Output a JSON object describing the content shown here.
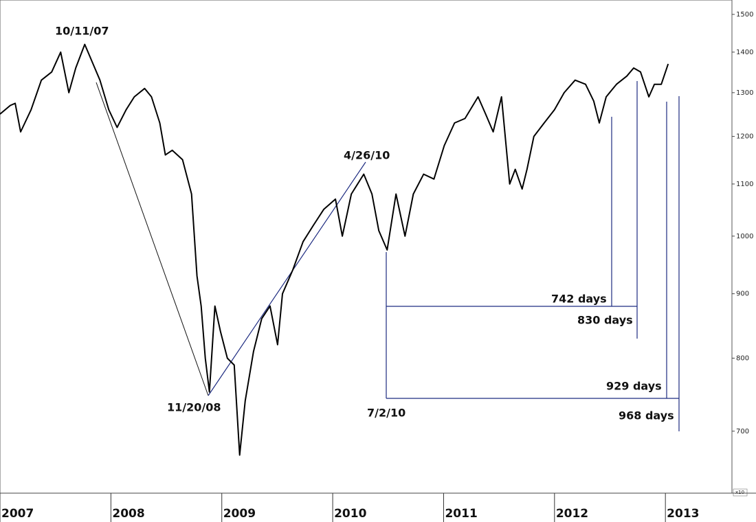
{
  "chart_data": {
    "type": "line",
    "log_y": true,
    "color": "#000000",
    "x": [
      2007.0,
      2007.093,
      2007.137,
      2007.186,
      2007.28,
      2007.373,
      2007.466,
      2007.547,
      2007.621,
      2007.683,
      2007.764,
      2007.839,
      2007.901,
      2007.981,
      2008.056,
      2008.137,
      2008.211,
      2008.304,
      2008.366,
      2008.441,
      2008.491,
      2008.553,
      2008.646,
      2008.727,
      2008.776,
      2008.814,
      2008.851,
      2008.888,
      2008.938,
      2008.988,
      2009.05,
      2009.112,
      2009.161,
      2009.211,
      2009.286,
      2009.36,
      2009.435,
      2009.503,
      2009.547,
      2009.64,
      2009.733,
      2009.826,
      2009.919,
      2010.025,
      2010.087,
      2010.168,
      2010.28,
      2010.354,
      2010.416,
      2010.491,
      2010.571,
      2010.652,
      2010.727,
      2010.82,
      2010.913,
      2011.006,
      2011.099,
      2011.193,
      2011.311,
      2011.379,
      2011.447,
      2011.522,
      2011.596,
      2011.646,
      2011.708,
      2011.752,
      2011.814,
      2011.907,
      2012.0,
      2012.087,
      2012.186,
      2012.28,
      2012.354,
      2012.404,
      2012.466,
      2012.559,
      2012.652,
      2012.714,
      2012.776,
      2012.851,
      2012.901,
      2012.963,
      2013.025
    ],
    "values": [
      1250,
      1270,
      1275,
      1210,
      1260,
      1330,
      1350,
      1400,
      1300,
      1360,
      1420,
      1370,
      1330,
      1260,
      1220,
      1260,
      1290,
      1310,
      1290,
      1230,
      1160,
      1170,
      1150,
      1080,
      930,
      880,
      800,
      752,
      880,
      840,
      800,
      790,
      670,
      740,
      810,
      860,
      880,
      820,
      900,
      940,
      990,
      1020,
      1050,
      1070,
      1000,
      1080,
      1120,
      1080,
      1010,
      975,
      1080,
      1000,
      1080,
      1120,
      1110,
      1180,
      1230,
      1240,
      1290,
      1250,
      1210,
      1290,
      1100,
      1130,
      1090,
      1130,
      1200,
      1230,
      1260,
      1300,
      1330,
      1320,
      1280,
      1230,
      1290,
      1320,
      1340,
      1360,
      1350,
      1290,
      1320,
      1320,
      1370
    ],
    "xlim": [
      2007,
      2013.6
    ],
    "xticks": [
      2007,
      2008,
      2009,
      2010,
      2011,
      2012,
      2013
    ],
    "ylim": [
      625,
      1540
    ],
    "yticks": [
      700,
      800,
      900,
      1000,
      1100,
      1200,
      1300,
      1400,
      1500
    ],
    "axis_note": "x10",
    "annotations": [
      "10/11/07",
      "11/20/08",
      "4/26/10",
      "7/2/10",
      "742 days",
      "830 days",
      "929 days",
      "968 days"
    ]
  }
}
